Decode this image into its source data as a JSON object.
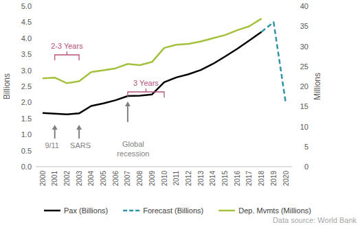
{
  "chart_data": {
    "type": "line",
    "y_label": "Billions",
    "y2_label": "Millions",
    "categories": [
      "2000",
      "2001",
      "2002",
      "2003",
      "2004",
      "2005",
      "2006",
      "2007",
      "2008",
      "2009",
      "2010",
      "2011",
      "2012",
      "2013",
      "2014",
      "2015",
      "2016",
      "2017",
      "2018",
      "2019",
      "2020"
    ],
    "series": [
      {
        "name": "Pax (Billions)",
        "color": "#000000",
        "line_style": "solid",
        "values": [
          1.67,
          1.65,
          1.63,
          1.66,
          1.89,
          1.97,
          2.07,
          2.2,
          2.21,
          2.25,
          2.63,
          2.78,
          2.88,
          3.01,
          3.2,
          3.43,
          3.67,
          3.93,
          4.2,
          null,
          null
        ]
      },
      {
        "name": "Forecast (Billions)",
        "color": "#2f93a8",
        "line_style": "dashed",
        "values": [
          null,
          null,
          null,
          null,
          null,
          null,
          null,
          null,
          null,
          null,
          null,
          null,
          null,
          null,
          null,
          null,
          null,
          null,
          4.2,
          4.5,
          1.97
        ]
      },
      {
        "name": "Dep. Mvmts (Millions)",
        "color": "#a2c13c",
        "line_style": "solid",
        "axis": "y2",
        "values": [
          22.0,
          22.2,
          20.8,
          21.3,
          23.6,
          24.0,
          24.5,
          25.6,
          25.3,
          26.1,
          29.6,
          30.4,
          30.6,
          31.2,
          32.0,
          32.8,
          34.0,
          35.0,
          36.9,
          null,
          null
        ]
      }
    ],
    "ylim": [
      0,
      5
    ],
    "yticks": [
      {
        "value": 0,
        "label": "0.0"
      },
      {
        "value": 0.5,
        "label": "0.5"
      },
      {
        "value": 1,
        "label": "1.0"
      },
      {
        "value": 1.5,
        "label": "1.5"
      },
      {
        "value": 2,
        "label": "2.0"
      },
      {
        "value": 2.5,
        "label": "2.5"
      },
      {
        "value": 3,
        "label": "3.0"
      },
      {
        "value": 3.5,
        "label": "3.5"
      },
      {
        "value": 4,
        "label": "4.0"
      },
      {
        "value": 4.5,
        "label": "4.5"
      },
      {
        "value": 5,
        "label": "5.0"
      }
    ],
    "y2lim": [
      0,
      40
    ],
    "y2ticks": [
      0,
      5,
      10,
      15,
      20,
      25,
      30,
      35,
      40
    ],
    "grid": false,
    "legend": "bottom",
    "annotations": [
      "2-3 Years",
      "3 Years",
      "9/11",
      "SARS",
      "Global recession"
    ],
    "source": "Data source: World Bank"
  }
}
